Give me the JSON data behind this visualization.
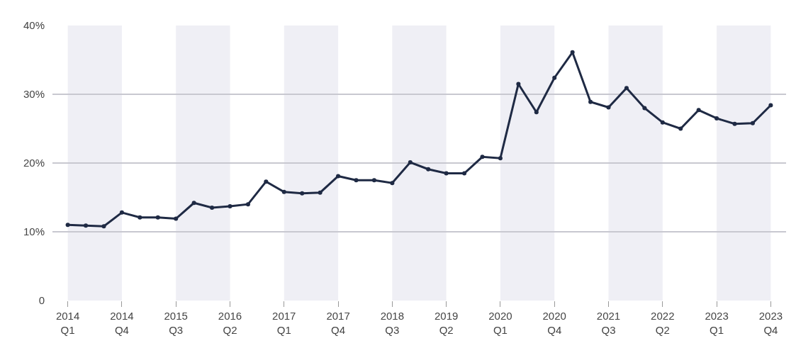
{
  "chart_data": {
    "type": "line",
    "categories": [
      "2014\nQ1",
      null,
      null,
      "2014\nQ4",
      null,
      null,
      "2015\nQ3",
      null,
      null,
      "2016\nQ2",
      null,
      null,
      "2017\nQ1",
      null,
      null,
      "2017\nQ4",
      null,
      null,
      "2018\nQ3",
      null,
      null,
      "2019\nQ2",
      null,
      null,
      "2020\nQ1",
      null,
      null,
      "2020\nQ4",
      null,
      null,
      "2021\nQ3",
      null,
      null,
      "2022\nQ2",
      null,
      null,
      "2023\nQ1",
      null,
      null,
      "2023\nQ4"
    ],
    "series": [
      {
        "color": "#1f2a44",
        "values": [
          11.0,
          10.9,
          10.8,
          12.8,
          12.1,
          12.1,
          11.9,
          14.2,
          13.5,
          13.7,
          14.0,
          17.3,
          15.8,
          15.6,
          15.7,
          18.1,
          17.5,
          17.5,
          17.1,
          20.1,
          19.1,
          18.5,
          18.5,
          20.9,
          20.7,
          31.5,
          27.4,
          32.4,
          36.1,
          28.9,
          28.1,
          30.9,
          28.0,
          25.9,
          25.0,
          27.7,
          26.5,
          25.7,
          25.8,
          28.4
        ]
      }
    ],
    "ylim": [
      0,
      40
    ],
    "yticks": [
      0,
      {
        "value": 10,
        "label": "10%"
      },
      {
        "value": 20,
        "label": "20%"
      },
      {
        "value": 30,
        "label": "30%"
      },
      {
        "value": 40,
        "label": "40%"
      }
    ],
    "grid": "y",
    "marker": "circle",
    "line_style": "solid",
    "bands": [
      {
        "axis": "x",
        "from": "2014\nQ1",
        "to": "2014\nQ4",
        "color": "#efeff5"
      },
      {
        "axis": "x",
        "from": "2015\nQ3",
        "to": "2016\nQ2",
        "color": "#efeff5"
      },
      {
        "axis": "x",
        "from": "2017\nQ1",
        "to": "2017\nQ4",
        "color": "#efeff5"
      },
      {
        "axis": "x",
        "from": "2018\nQ3",
        "to": "2019\nQ2",
        "color": "#efeff5"
      },
      {
        "axis": "x",
        "from": "2020\nQ1",
        "to": "2020\nQ4",
        "color": "#efeff5"
      },
      {
        "axis": "x",
        "from": "2021\nQ3",
        "to": "2022\nQ2",
        "color": "#efeff5"
      },
      {
        "axis": "x",
        "from": "2023\nQ1",
        "to": "2023\nQ4",
        "color": "#efeff5"
      }
    ]
  }
}
